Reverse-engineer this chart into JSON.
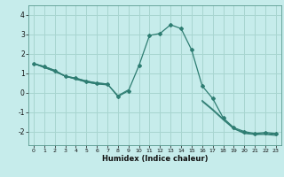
{
  "title": "",
  "xlabel": "Humidex (Indice chaleur)",
  "bg_color": "#c6eceb",
  "grid_color": "#a8d5d0",
  "line_color": "#2e7d72",
  "x_ticks": [
    0,
    1,
    2,
    3,
    4,
    5,
    6,
    7,
    8,
    9,
    10,
    11,
    12,
    13,
    14,
    15,
    16,
    17,
    18,
    19,
    20,
    21,
    22,
    23
  ],
  "xlim": [
    -0.5,
    23.5
  ],
  "ylim": [
    -2.7,
    4.5
  ],
  "y_ticks": [
    -2,
    -1,
    0,
    1,
    2,
    3,
    4
  ],
  "series": [
    [
      1.5,
      1.35,
      1.15,
      0.85,
      0.75,
      0.6,
      0.5,
      0.45,
      -0.2,
      0.1,
      1.4,
      2.95,
      3.05,
      3.5,
      3.3,
      2.2,
      0.35,
      -0.3,
      -1.3,
      -1.8,
      -2.0,
      -2.1,
      -2.05,
      -2.1
    ],
    [
      1.5,
      1.35,
      1.15,
      0.85,
      0.75,
      0.6,
      0.5,
      0.45,
      -0.15,
      0.15,
      null,
      null,
      null,
      null,
      null,
      null,
      null,
      null,
      null,
      null,
      null,
      null,
      null,
      null
    ],
    [
      1.5,
      1.3,
      1.1,
      0.85,
      0.7,
      0.55,
      0.45,
      0.45,
      null,
      null,
      null,
      null,
      null,
      null,
      null,
      null,
      -0.4,
      -0.85,
      -1.35,
      -1.85,
      -2.05,
      -2.15,
      -2.1,
      -2.15
    ],
    [
      1.5,
      1.3,
      1.1,
      0.85,
      0.7,
      0.55,
      0.45,
      0.4,
      null,
      null,
      null,
      null,
      null,
      null,
      null,
      null,
      -0.45,
      -0.9,
      -1.4,
      -1.85,
      -2.1,
      -2.15,
      -2.15,
      -2.2
    ]
  ]
}
